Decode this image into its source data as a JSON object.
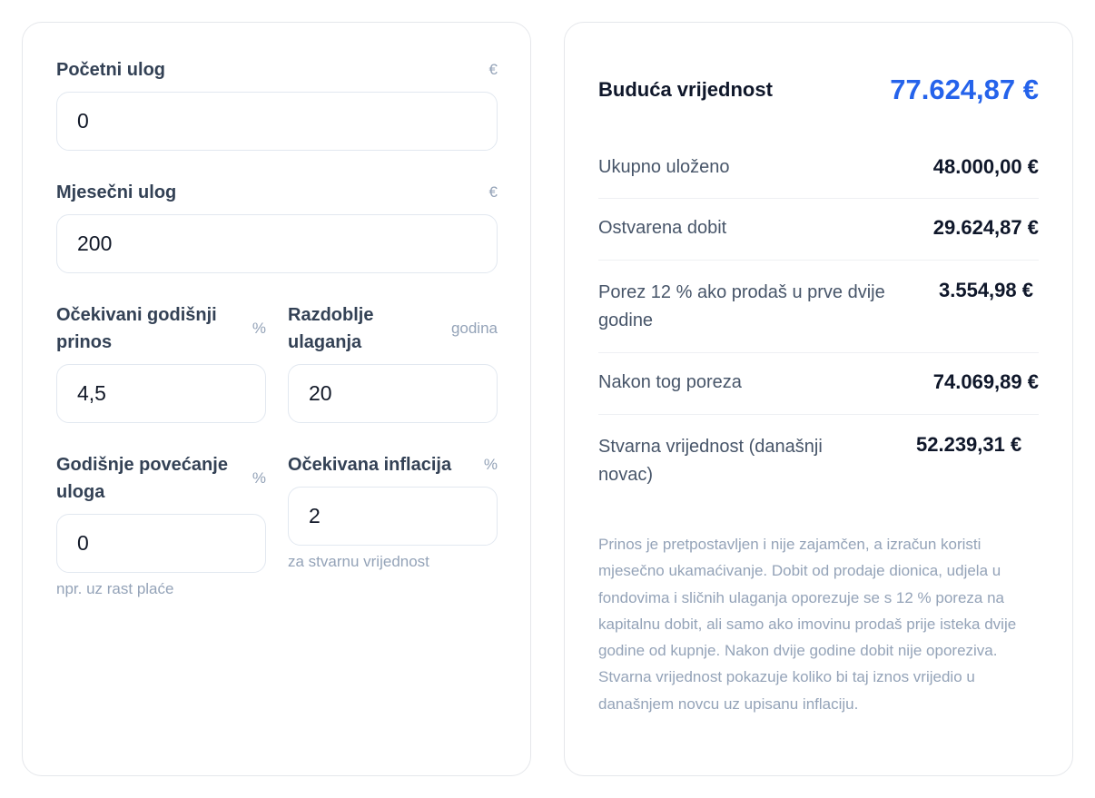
{
  "form": {
    "initial": {
      "label": "Početni ulog",
      "unit": "€",
      "value": "0"
    },
    "monthly": {
      "label": "Mjesečni ulog",
      "unit": "€",
      "value": "200"
    },
    "return_rate": {
      "label": "Očekivani godišnji prinos",
      "unit": "%",
      "value": "4,5"
    },
    "period": {
      "label": "Razdoblje ulaganja",
      "unit": "godina",
      "value": "20"
    },
    "annual_increase": {
      "label": "Godišnje povećanje uloga",
      "unit": "%",
      "value": "0",
      "hint": "npr. uz rast plaće"
    },
    "inflation": {
      "label": "Očekivana inflacija",
      "unit": "%",
      "value": "2",
      "hint": "za stvarnu vrijednost"
    }
  },
  "results": {
    "future_value": {
      "label": "Buduća vrijednost",
      "value": "77.624,87 €",
      "color": "#2563eb"
    },
    "rows": [
      {
        "label": "Ukupno uloženo",
        "value": "48.000,00 €"
      },
      {
        "label": "Ostvarena dobit",
        "value": "29.624,87 €"
      },
      {
        "label": "Porez 12 % ako prodaš u prve dvije godine",
        "value": "3.554,98 €"
      },
      {
        "label": "Nakon tog poreza",
        "value": "74.069,89 €"
      },
      {
        "label": "Stvarna vrijednost (današnji novac)",
        "value": "52.239,31 €"
      }
    ],
    "note": "Prinos je pretpostavljen i nije zajamčen, a izračun koristi mjesečno ukamaćivanje. Dobit od prodaje dionica, udjela u fondovima i sličnih ulaganja oporezuje se s 12 % poreza na kapitalnu dobit, ali samo ako imovinu prodaš prije isteka dvije godine od kupnje. Nakon dvije godine dobit nije oporeziva. Stvarna vrijednost pokazuje koliko bi taj iznos vrijedio u današnjem novcu uz upisanu inflaciju."
  }
}
